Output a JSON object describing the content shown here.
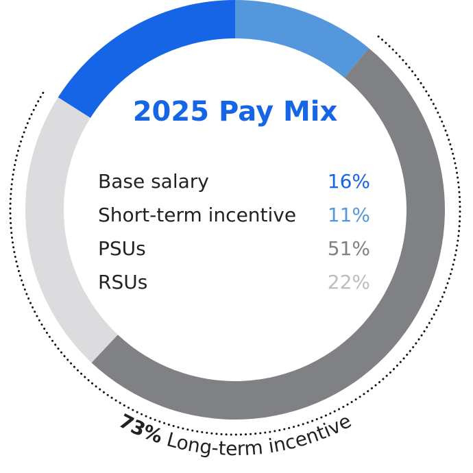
{
  "chart_data": {
    "type": "donut",
    "title": "2025 Pay Mix",
    "categories": [
      "Base salary",
      "Short-term incentive",
      "PSUs",
      "RSUs"
    ],
    "values": [
      16,
      11,
      51,
      22
    ],
    "value_labels": [
      "16%",
      "11%",
      "51%",
      "22%"
    ],
    "colors": [
      "#1565e6",
      "#5597dd",
      "#808184",
      "#dcdcde"
    ],
    "label_colors": [
      "#1565e6",
      "#5597dd",
      "#808184",
      "#bdbdbf"
    ],
    "annotation": {
      "value": 73,
      "value_label": "73%",
      "label": "Long-term incentive"
    }
  }
}
